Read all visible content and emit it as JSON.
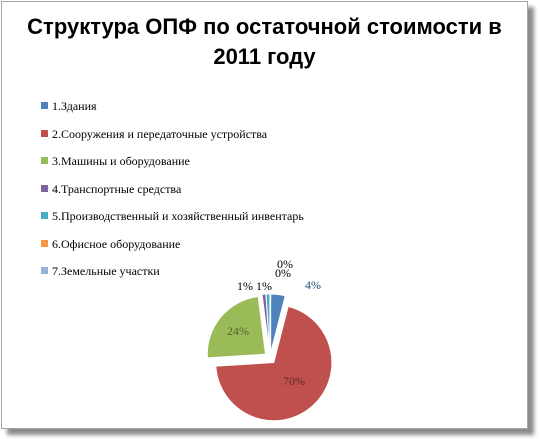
{
  "chart_data": {
    "type": "pie",
    "title": "Структура ОПФ по остаточной стоимости  в 2011 году",
    "legend_position": "left",
    "categories": [
      "1.Здания",
      "2.Сооружения и передаточные устройства",
      "3.Машины и оборудование",
      "4.Транспортные средства",
      "5.Производственный и хозяйственный инвентарь",
      "6.Офисное оборудование",
      "7.Земельные участки"
    ],
    "values": [
      4,
      70,
      24,
      1,
      1,
      0,
      0
    ],
    "data_labels": [
      "4%",
      "70%",
      "24%",
      "1%",
      "1%",
      "0%",
      "0%"
    ],
    "colors": [
      "#4f81bd",
      "#c0504d",
      "#9bbb59",
      "#8064a2",
      "#4bacc6",
      "#f79646",
      "#95b3d7"
    ]
  }
}
